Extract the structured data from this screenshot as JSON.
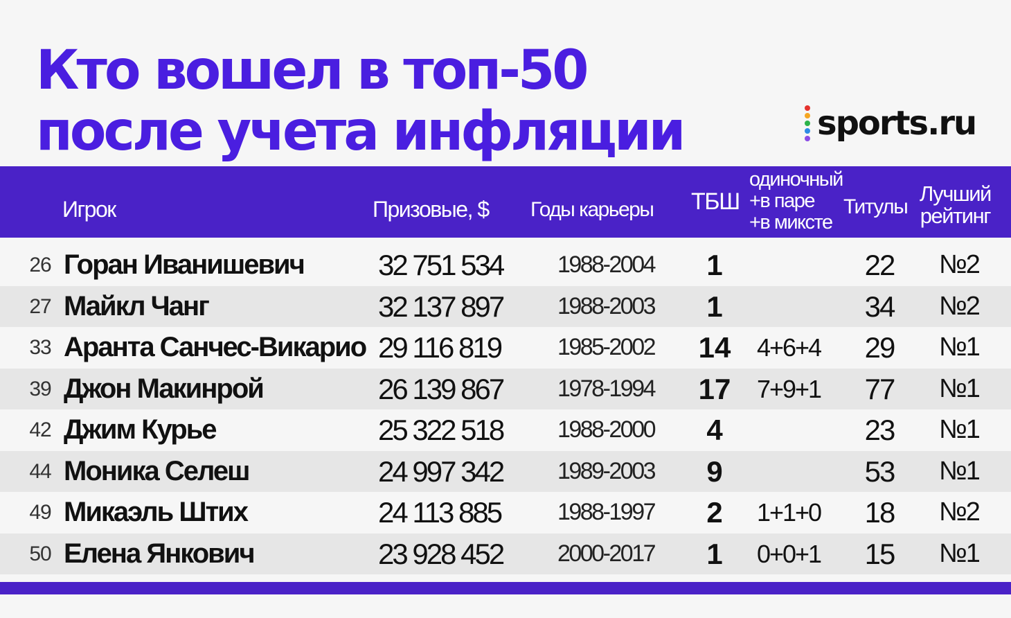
{
  "title": {
    "line1": "Кто вошел в топ-50",
    "line2": "после учета инфляции"
  },
  "logo": {
    "text": "sports.ru",
    "dot_colors": [
      "#e5322d",
      "#f5a623",
      "#2db34a",
      "#2d8be5",
      "#8a4be5"
    ]
  },
  "colors": {
    "accent": "#4a22c7",
    "title": "#4a1ee0",
    "row_alt": "#e6e6e6"
  },
  "table": {
    "headers": {
      "player": "Игрок",
      "prize": "Призовые, $",
      "years": "Годы карьеры",
      "grand_slams": "ТБШ",
      "slams_detail": [
        "одиночный",
        "+в паре",
        "+в миксте"
      ],
      "titles": "Титулы",
      "best_rank": [
        "Лучший",
        "рейтинг"
      ]
    },
    "rows": [
      {
        "rank": "26",
        "name": "Горан Иванишевич",
        "prize": "32 751 534",
        "years": "1988-2004",
        "gs": "1",
        "slams": "",
        "titles": "22",
        "best": "№2"
      },
      {
        "rank": "27",
        "name": "Майкл Чанг",
        "prize": "32 137 897",
        "years": "1988-2003",
        "gs": "1",
        "slams": "",
        "titles": "34",
        "best": "№2"
      },
      {
        "rank": "33",
        "name": "Аранта Санчес-Викарио",
        "prize": "29 116 819",
        "years": "1985-2002",
        "gs": "14",
        "slams": "4+6+4",
        "titles": "29",
        "best": "№1"
      },
      {
        "rank": "39",
        "name": "Джон Макинрой",
        "prize": "26 139 867",
        "years": "1978-1994",
        "gs": "17",
        "slams": "7+9+1",
        "titles": "77",
        "best": "№1"
      },
      {
        "rank": "42",
        "name": "Джим Курье",
        "prize": "25 322 518",
        "years": "1988-2000",
        "gs": "4",
        "slams": "",
        "titles": "23",
        "best": "№1"
      },
      {
        "rank": "44",
        "name": "Моника Селеш",
        "prize": "24 997 342",
        "years": "1989-2003",
        "gs": "9",
        "slams": "",
        "titles": "53",
        "best": "№1"
      },
      {
        "rank": "49",
        "name": "Микаэль Штих",
        "prize": "24 113 885",
        "years": "1988-1997",
        "gs": "2",
        "slams": "1+1+0",
        "titles": "18",
        "best": "№2"
      },
      {
        "rank": "50",
        "name": "Елена Янкович",
        "prize": "23 928 452",
        "years": "2000-2017",
        "gs": "1",
        "slams": "0+0+1",
        "titles": "15",
        "best": "№1"
      }
    ]
  }
}
